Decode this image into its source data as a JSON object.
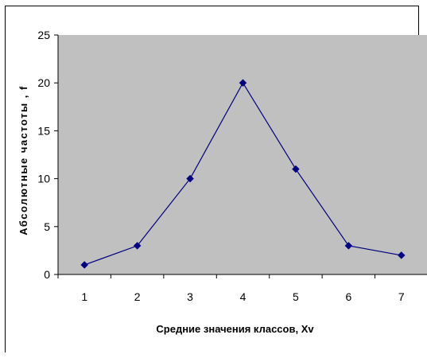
{
  "chart_data": {
    "type": "line",
    "title": "",
    "xlabel": "Средние значения классов, Xv",
    "ylabel": "Абсолютные частоты , f",
    "categories": [
      "1",
      "2",
      "3",
      "4",
      "5",
      "6",
      "7"
    ],
    "series": [
      {
        "values": [
          1,
          3,
          10,
          20,
          11,
          3,
          2
        ]
      }
    ],
    "ylim": [
      0,
      25
    ],
    "yticks": [
      0,
      5,
      10,
      15,
      20,
      25
    ],
    "plot_background": "#c0c0c0",
    "line_color": "#000080",
    "marker": "diamond",
    "grid": false,
    "legend": "none"
  }
}
